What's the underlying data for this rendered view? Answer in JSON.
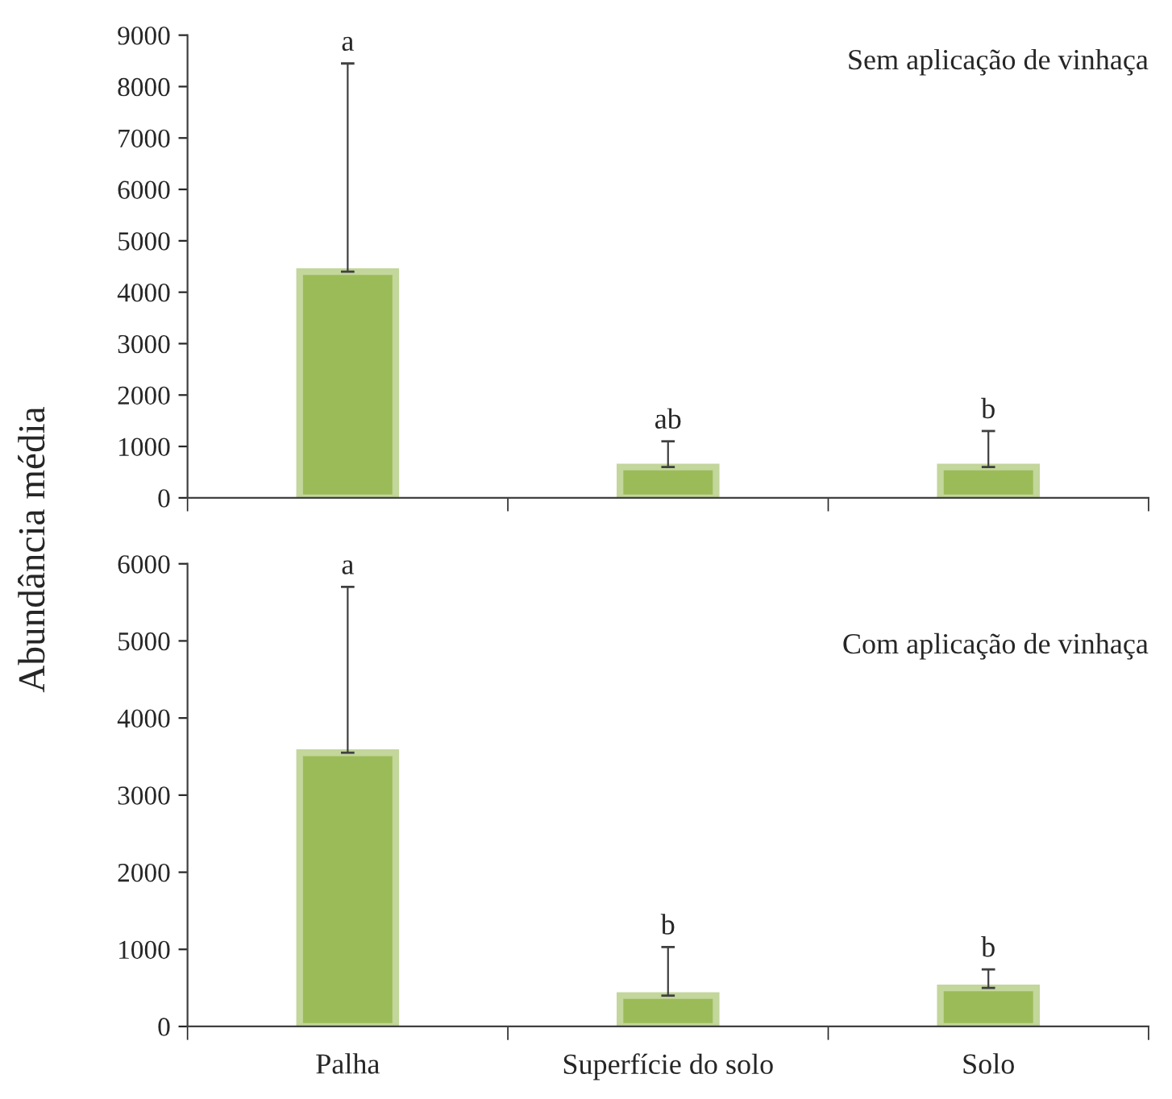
{
  "chart_data": [
    {
      "type": "bar",
      "ylabel": "Abundância média",
      "categories": [
        null,
        null,
        null
      ],
      "values": [
        4400,
        600,
        600
      ],
      "errors": [
        [
          4400,
          8450
        ],
        [
          600,
          1100
        ],
        [
          600,
          1300
        ]
      ],
      "color": "#9bbb59",
      "ylim": [
        0,
        9000
      ],
      "yticks": [
        0,
        1000,
        2000,
        3000,
        4000,
        5000,
        6000,
        7000,
        8000,
        9000
      ],
      "grid": false,
      "tick_labels": "y",
      "annotations": [
        "Sem aplicação de vinhaça",
        "a",
        "ab",
        "b"
      ]
    },
    {
      "type": "bar",
      "categories": [
        "Palha",
        "Superfície do solo",
        "Solo"
      ],
      "values": [
        3550,
        400,
        500
      ],
      "errors": [
        [
          3550,
          5700
        ],
        [
          400,
          1030
        ],
        [
          500,
          740
        ]
      ],
      "color": "#9bbb59",
      "ylim": [
        0,
        6000
      ],
      "yticks": [
        0,
        1000,
        2000,
        3000,
        4000,
        5000,
        6000
      ],
      "grid": false,
      "annotations": [
        "Com aplicação de vinhaça",
        "a",
        "b",
        "b"
      ]
    }
  ]
}
